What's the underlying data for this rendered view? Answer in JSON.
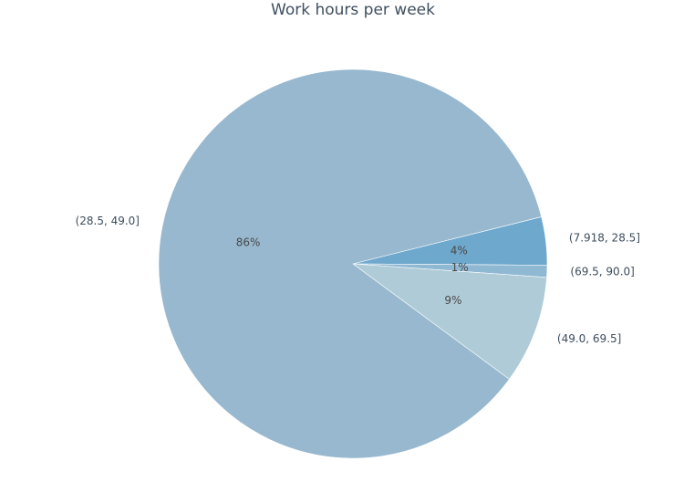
{
  "chart_data": {
    "type": "pie",
    "title": "Work hours per week",
    "categories": [
      "(7.918, 28.5]",
      "(69.5, 90.0]",
      "(49.0, 69.5]",
      "(28.5, 49.0]"
    ],
    "values": [
      4,
      1,
      9,
      86
    ],
    "percent_labels": [
      "4%",
      "1%",
      "9%",
      "86%"
    ],
    "colors": [
      "#6fa8cd",
      "#8fb8d3",
      "#afcbd7",
      "#97b8cf"
    ],
    "start_angle_deg": 14,
    "direction": "clockwise",
    "legend": "none"
  }
}
